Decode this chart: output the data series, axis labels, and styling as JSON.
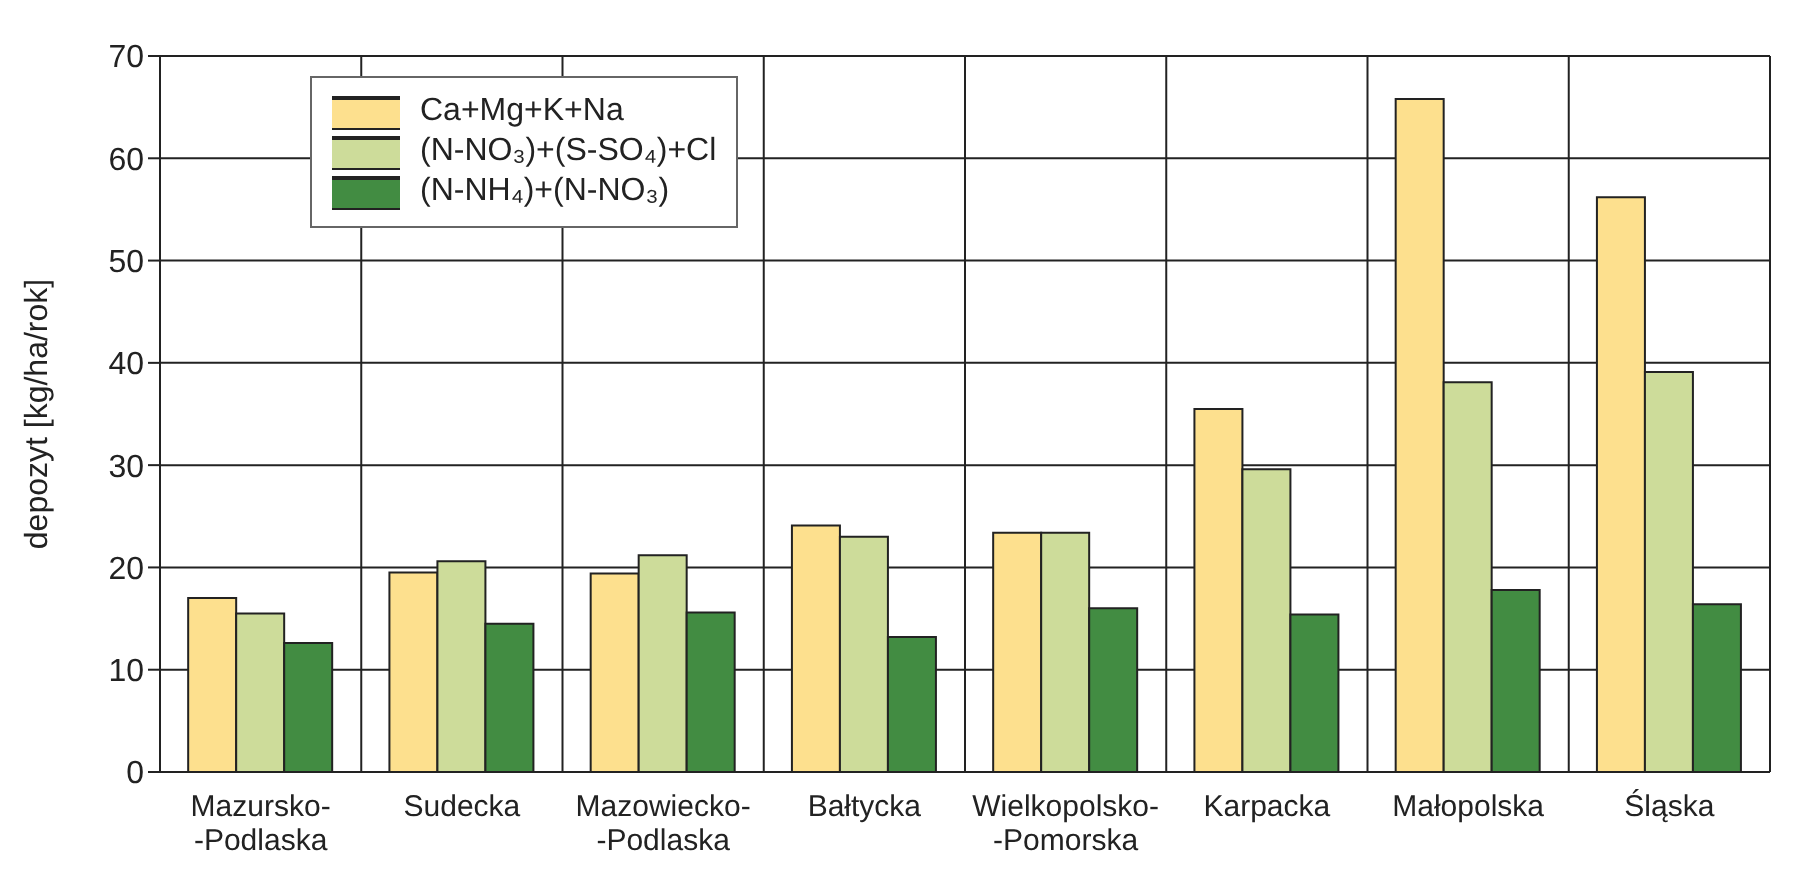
{
  "chart_data": {
    "type": "bar",
    "ylabel": "depozyt [kg/ha/rok]",
    "categories": [
      "Mazursko-\n-Podlaska",
      "Sudecka",
      "Mazowiecko-\n-Podlaska",
      "Bałtycka",
      "Wielkopolsko-\n-Pomorska",
      "Karpacka",
      "Małopolska",
      "Śląska"
    ],
    "series": [
      {
        "name": "Ca+Mg+K+Na",
        "color": "#fde08e",
        "values": [
          17,
          19.5,
          19.4,
          24.1,
          23.4,
          35.5,
          65.8,
          56.2
        ]
      },
      {
        "name": "(N-NO₃)+(S-SO₄)+Cl",
        "color": "#cddc9a",
        "values": [
          15.5,
          20.6,
          21.2,
          23,
          23.4,
          29.6,
          38.1,
          39.1
        ]
      },
      {
        "name": "(N-NH₄)+(N-NO₃)",
        "color": "#428c42",
        "values": [
          12.6,
          14.5,
          15.6,
          13.2,
          16,
          15.4,
          17.8,
          16.4
        ]
      }
    ],
    "ylim": [
      0,
      70
    ],
    "yticks": [
      0,
      10,
      20,
      30,
      40,
      50,
      60,
      70
    ],
    "grid": true,
    "legend": "top left"
  }
}
